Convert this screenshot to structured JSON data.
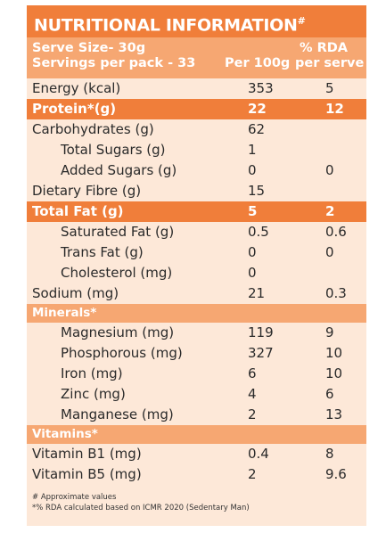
{
  "title": "NUTRITIONAL INFORMATION",
  "title_mark": "#",
  "header": {
    "serve_size": "Serve Size- 30g",
    "servings": "Servings per pack - 33",
    "per100_label": "Per 100g",
    "rda_line1": "% RDA",
    "rda_line2": "per serve"
  },
  "rows": [
    {
      "name": "Energy (kcal)",
      "per100": "353",
      "rda": "5",
      "style": "normal"
    },
    {
      "name": "Protein*(g)",
      "per100": "22",
      "rda": "12",
      "style": "highlight"
    },
    {
      "name": "Carbohydrates (g)",
      "per100": "62",
      "rda": "",
      "style": "normal"
    },
    {
      "name": "Total Sugars (g)",
      "per100": "1",
      "rda": "",
      "style": "indent"
    },
    {
      "name": "Added Sugars (g)",
      "per100": "0",
      "rda": "0",
      "style": "indent"
    },
    {
      "name": "Dietary Fibre (g)",
      "per100": "15",
      "rda": "",
      "style": "normal"
    },
    {
      "name": "Total Fat (g)",
      "per100": "5",
      "rda": "2",
      "style": "highlight"
    },
    {
      "name": "Saturated Fat (g)",
      "per100": "0.5",
      "rda": "0.6",
      "style": "indent"
    },
    {
      "name": "Trans Fat (g)",
      "per100": "0",
      "rda": "0",
      "style": "indent"
    },
    {
      "name": "Cholesterol (mg)",
      "per100": "0",
      "rda": "",
      "style": "indent"
    },
    {
      "name": "Sodium (mg)",
      "per100": "21",
      "rda": "0.3",
      "style": "normal"
    }
  ],
  "minerals": {
    "label": "Minerals*",
    "rows": [
      {
        "name": "Magnesium (mg)",
        "per100": "119",
        "rda": "9"
      },
      {
        "name": "Phosphorous (mg)",
        "per100": "327",
        "rda": "10"
      },
      {
        "name": "Iron (mg)",
        "per100": "6",
        "rda": "10"
      },
      {
        "name": "Zinc (mg)",
        "per100": "4",
        "rda": "6"
      },
      {
        "name": "Manganese (mg)",
        "per100": "2",
        "rda": "13"
      }
    ]
  },
  "vitamins": {
    "label": "Vitamins*",
    "rows": [
      {
        "name": "Vitamin B1 (mg)",
        "per100": "0.4",
        "rda": "8"
      },
      {
        "name": "Vitamin B5 (mg)",
        "per100": "2",
        "rda": "9.6"
      }
    ]
  },
  "footnotes": [
    "# Approximate values",
    "*% RDA calculated based on ICMR 2020 (Sedentary Man)"
  ],
  "colors": {
    "accent": "#f07e3a",
    "accent_light": "#f6a772",
    "panel_bg": "#fde8d8"
  }
}
